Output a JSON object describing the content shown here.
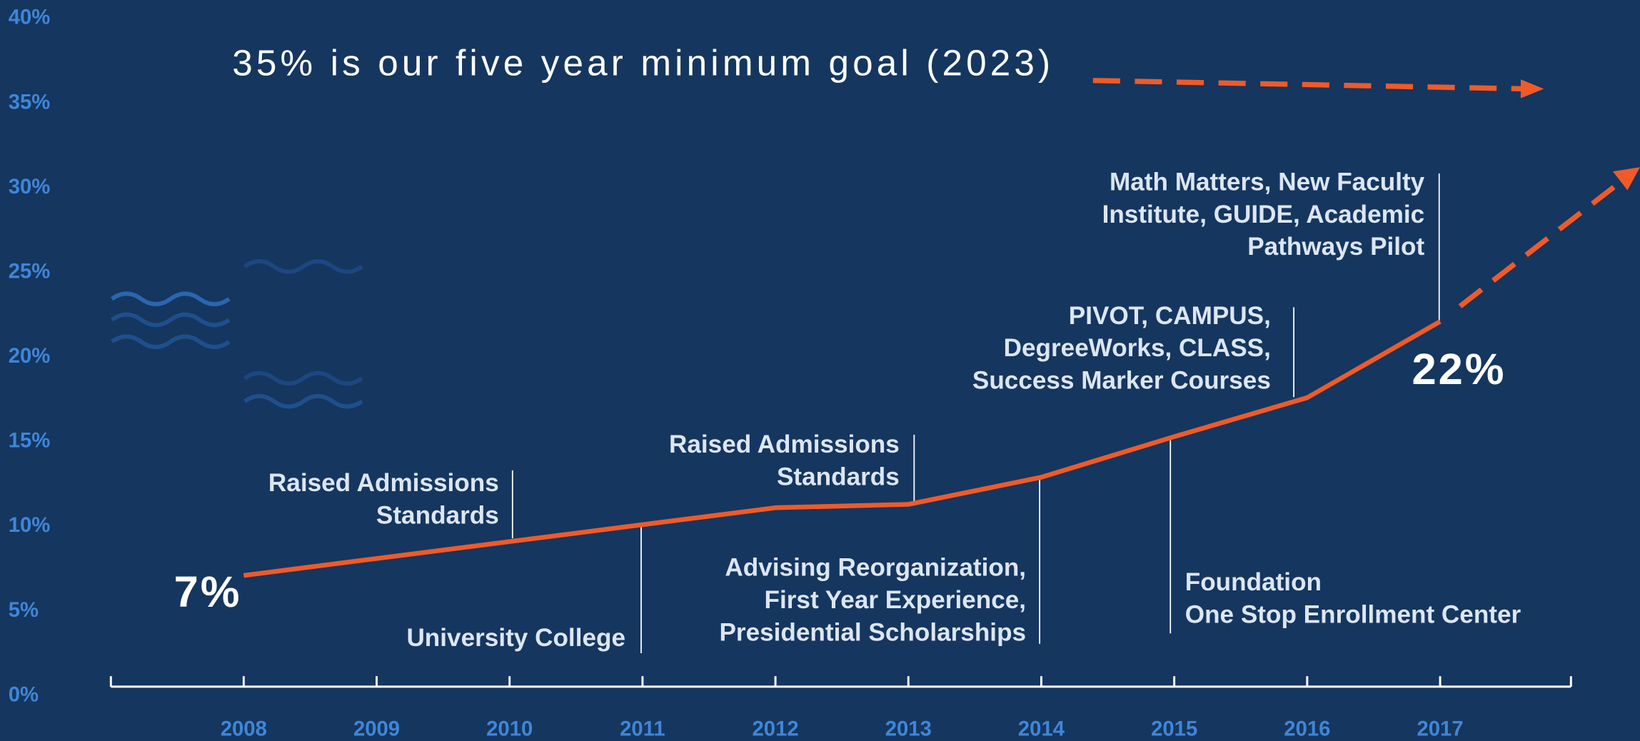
{
  "chart_data": {
    "type": "line",
    "categories": [
      "2008",
      "2009",
      "2010",
      "2011",
      "2012",
      "2013",
      "2014",
      "2015",
      "2016",
      "2017"
    ],
    "values": [
      7,
      8,
      9,
      10,
      11,
      11.2,
      12.8,
      15.2,
      17.5,
      22
    ],
    "value_labels": [
      "7%",
      null,
      null,
      null,
      null,
      null,
      null,
      null,
      null,
      "22%"
    ],
    "color": "#f05a28",
    "ylim": [
      0,
      40
    ],
    "yticks": [
      {
        "value": 0,
        "label": "0%"
      },
      {
        "value": 5,
        "label": "5%"
      },
      {
        "value": 10,
        "label": "10%"
      },
      {
        "value": 15,
        "label": "15%"
      },
      {
        "value": 20,
        "label": "20%"
      },
      {
        "value": 25,
        "label": "25%"
      },
      {
        "value": 30,
        "label": "30%"
      },
      {
        "value": 35,
        "label": "35%"
      },
      {
        "value": 40,
        "label": "40%"
      }
    ],
    "goal_note": "35% is our five year minimum goal (2023)",
    "annotations": [
      {
        "lines": [
          "Raised Admissions",
          "Standards"
        ]
      },
      {
        "lines": [
          "University College"
        ]
      },
      {
        "lines": [
          "Raised Admissions",
          "Standards"
        ]
      },
      {
        "lines": [
          "Advising Reorganization,",
          "First Year Experience,",
          "Presidential Scholarships"
        ]
      },
      {
        "lines": [
          "Foundation",
          "One Stop Enrollment Center"
        ]
      },
      {
        "lines": [
          "PIVOT, CAMPUS,",
          "DegreeWorks, CLASS,",
          "Success Marker Courses"
        ]
      },
      {
        "lines": [
          "Math Matters, New Faculty",
          "Institute, GUIDE, Academic",
          "Pathways Pilot"
        ]
      }
    ]
  }
}
